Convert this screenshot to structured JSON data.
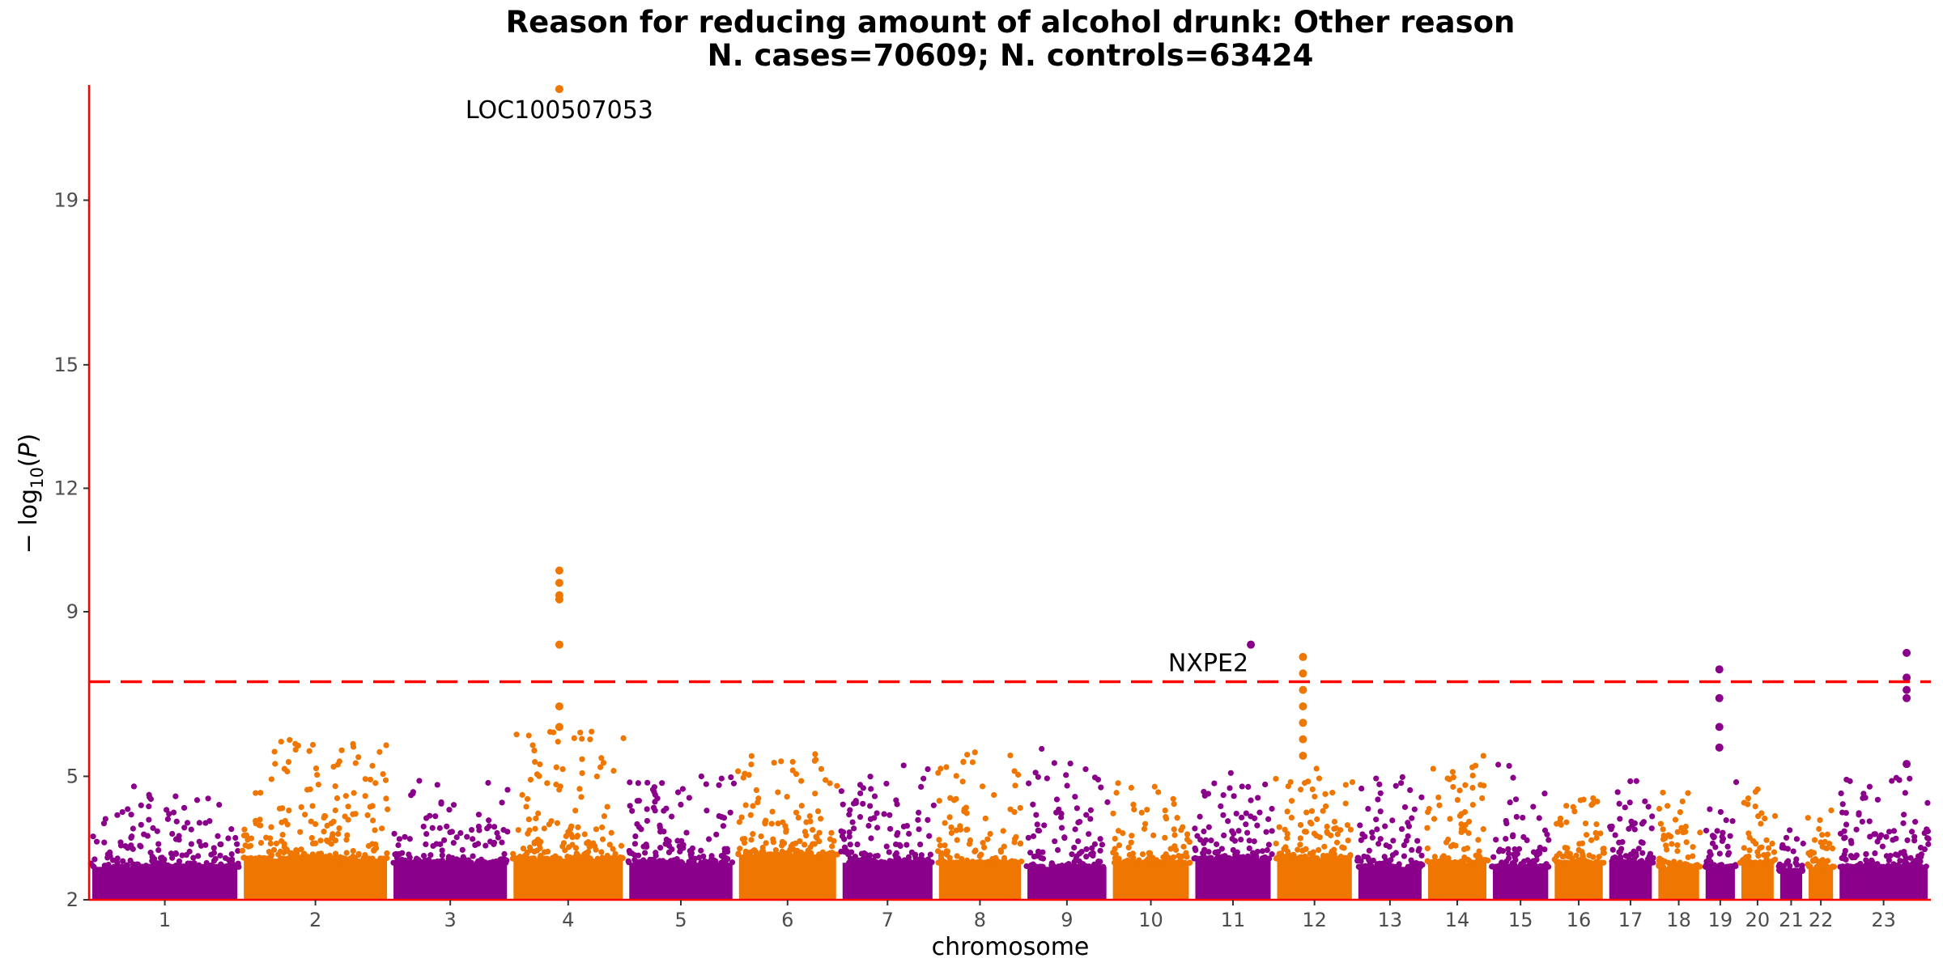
{
  "chart_data": {
    "type": "scatter",
    "title": "Reason for reducing amount of alcohol drunk: Other reason",
    "subtitle": "N. cases=70609; N. controls=63424",
    "xlabel": "chromosome",
    "ylabel": "-log10(P)",
    "ylim": [
      2,
      21.8
    ],
    "yticks": [
      2,
      5,
      9,
      12,
      15,
      19
    ],
    "grid": false,
    "significance_threshold": 7.3,
    "colors": {
      "odd": "#8b008b",
      "even": "#ef7600",
      "threshold": "#ff0000",
      "axis": "#ff0000"
    },
    "chromosomes": [
      {
        "label": "1",
        "start": 0,
        "end": 250,
        "base": 3.2,
        "peak": 4.8
      },
      {
        "label": "2",
        "start": 250,
        "end": 497,
        "base": 3.4,
        "peak": 5.9
      },
      {
        "label": "3",
        "start": 497,
        "end": 695,
        "base": 3.3,
        "peak": 4.9
      },
      {
        "label": "4",
        "start": 695,
        "end": 886,
        "base": 3.4,
        "peak": 6.1
      },
      {
        "label": "5",
        "start": 886,
        "end": 1067,
        "base": 3.3,
        "peak": 5.1
      },
      {
        "label": "6",
        "start": 1067,
        "end": 1238,
        "base": 3.5,
        "peak": 5.7
      },
      {
        "label": "7",
        "start": 1238,
        "end": 1397,
        "base": 3.3,
        "peak": 5.3
      },
      {
        "label": "8",
        "start": 1397,
        "end": 1543,
        "base": 3.3,
        "peak": 5.7
      },
      {
        "label": "9",
        "start": 1543,
        "end": 1684,
        "base": 3.2,
        "peak": 5.8
      },
      {
        "label": "10",
        "start": 1684,
        "end": 1820,
        "base": 3.3,
        "peak": 4.9
      },
      {
        "label": "11",
        "start": 1820,
        "end": 1955,
        "base": 3.4,
        "peak": 5.2
      },
      {
        "label": "12",
        "start": 1955,
        "end": 2089,
        "base": 3.4,
        "peak": 5.3
      },
      {
        "label": "13",
        "start": 2089,
        "end": 2204,
        "base": 3.2,
        "peak": 5.1
      },
      {
        "label": "14",
        "start": 2204,
        "end": 2311,
        "base": 3.3,
        "peak": 5.5
      },
      {
        "label": "15",
        "start": 2311,
        "end": 2413,
        "base": 3.2,
        "peak": 5.3
      },
      {
        "label": "16",
        "start": 2413,
        "end": 2503,
        "base": 3.3,
        "peak": 4.5
      },
      {
        "label": "17",
        "start": 2503,
        "end": 2584,
        "base": 3.3,
        "peak": 5.1
      },
      {
        "label": "18",
        "start": 2584,
        "end": 2662,
        "base": 3.2,
        "peak": 4.7
      },
      {
        "label": "19",
        "start": 2662,
        "end": 2721,
        "base": 3.2,
        "peak": 4.9
      },
      {
        "label": "20",
        "start": 2721,
        "end": 2785,
        "base": 3.3,
        "peak": 4.7
      },
      {
        "label": "21",
        "start": 2785,
        "end": 2832,
        "base": 3.1,
        "peak": 4.0
      },
      {
        "label": "22",
        "start": 2832,
        "end": 2883,
        "base": 3.2,
        "peak": 4.2
      },
      {
        "label": "23",
        "start": 2883,
        "end": 3039,
        "base": 3.2,
        "peak": 5.3
      }
    ],
    "highlight_points": [
      {
        "chr": "4",
        "x": 776,
        "y": 21.7
      },
      {
        "chr": "4",
        "x": 776,
        "y": 10.0
      },
      {
        "chr": "4",
        "x": 776,
        "y": 9.7
      },
      {
        "chr": "4",
        "x": 776,
        "y": 9.4
      },
      {
        "chr": "4",
        "x": 776,
        "y": 9.3
      },
      {
        "chr": "4",
        "x": 776,
        "y": 8.2
      },
      {
        "chr": "4",
        "x": 776,
        "y": 6.7
      },
      {
        "chr": "4",
        "x": 776,
        "y": 6.2
      },
      {
        "chr": "11",
        "x": 1917,
        "y": 8.2
      },
      {
        "chr": "12",
        "x": 2003,
        "y": 7.9
      },
      {
        "chr": "12",
        "x": 2003,
        "y": 7.5
      },
      {
        "chr": "12",
        "x": 2003,
        "y": 7.1
      },
      {
        "chr": "12",
        "x": 2003,
        "y": 6.7
      },
      {
        "chr": "12",
        "x": 2003,
        "y": 6.3
      },
      {
        "chr": "12",
        "x": 2003,
        "y": 5.9
      },
      {
        "chr": "12",
        "x": 2003,
        "y": 5.5
      },
      {
        "chr": "19",
        "x": 2690,
        "y": 7.6
      },
      {
        "chr": "19",
        "x": 2690,
        "y": 6.9
      },
      {
        "chr": "19",
        "x": 2690,
        "y": 6.2
      },
      {
        "chr": "19",
        "x": 2690,
        "y": 5.7
      },
      {
        "chr": "23",
        "x": 2999,
        "y": 8.0
      },
      {
        "chr": "23",
        "x": 2999,
        "y": 7.4
      },
      {
        "chr": "23",
        "x": 2999,
        "y": 7.1
      },
      {
        "chr": "23",
        "x": 2999,
        "y": 6.9
      },
      {
        "chr": "23",
        "x": 2999,
        "y": 5.3
      }
    ],
    "annotations": [
      {
        "text": "LOC100507053",
        "x": 776,
        "y": 21.7,
        "anchor": "below"
      },
      {
        "text": "NXPE2",
        "x": 1917,
        "y": 8.2,
        "anchor": "left"
      }
    ]
  }
}
